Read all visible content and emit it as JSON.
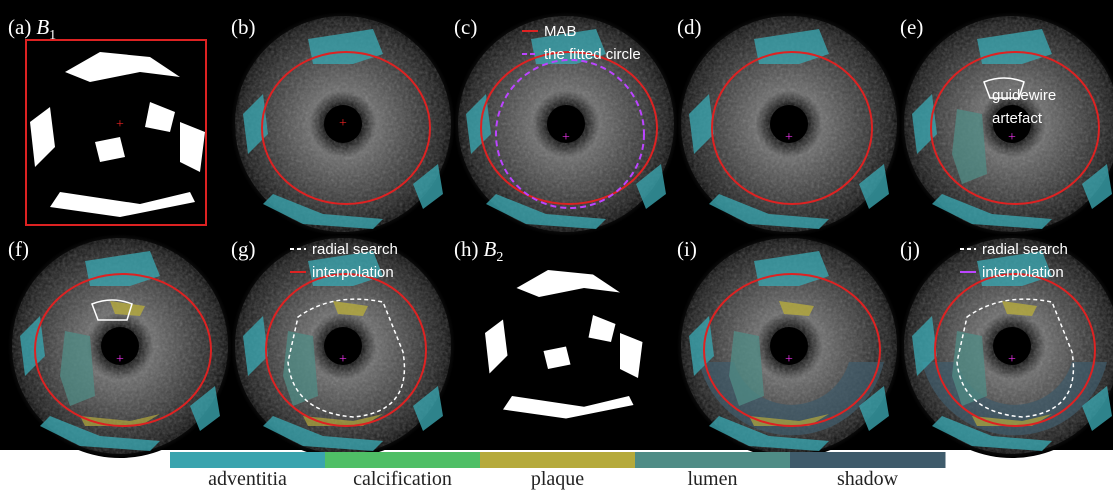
{
  "panels": [
    {
      "label": "(a)",
      "symbol": "B",
      "subscript": "1"
    },
    {
      "label": "(b)"
    },
    {
      "label": "(c)"
    },
    {
      "label": "(d)"
    },
    {
      "label": "(e)"
    },
    {
      "label": "(f)"
    },
    {
      "label": "(g)"
    },
    {
      "label": "(h)",
      "symbol": "B",
      "subscript": "2"
    },
    {
      "label": "(i)"
    },
    {
      "label": "(j)"
    }
  ],
  "annotations": {
    "c": [
      "MAB",
      "the fitted circle"
    ],
    "e": [
      "guidewire",
      "artefact"
    ],
    "g": [
      "radial search",
      "interpolation"
    ],
    "j": [
      "radial search",
      "interpolation"
    ]
  },
  "legend": [
    {
      "name": "adventitia",
      "color": "#3aa4ae"
    },
    {
      "name": "calcification",
      "color": "#4fbf66"
    },
    {
      "name": "plaque",
      "color": "#b5aa3c"
    },
    {
      "name": "lumen",
      "color": "#4f8c86"
    },
    {
      "name": "shadow",
      "color": "#3f5b6b"
    }
  ]
}
